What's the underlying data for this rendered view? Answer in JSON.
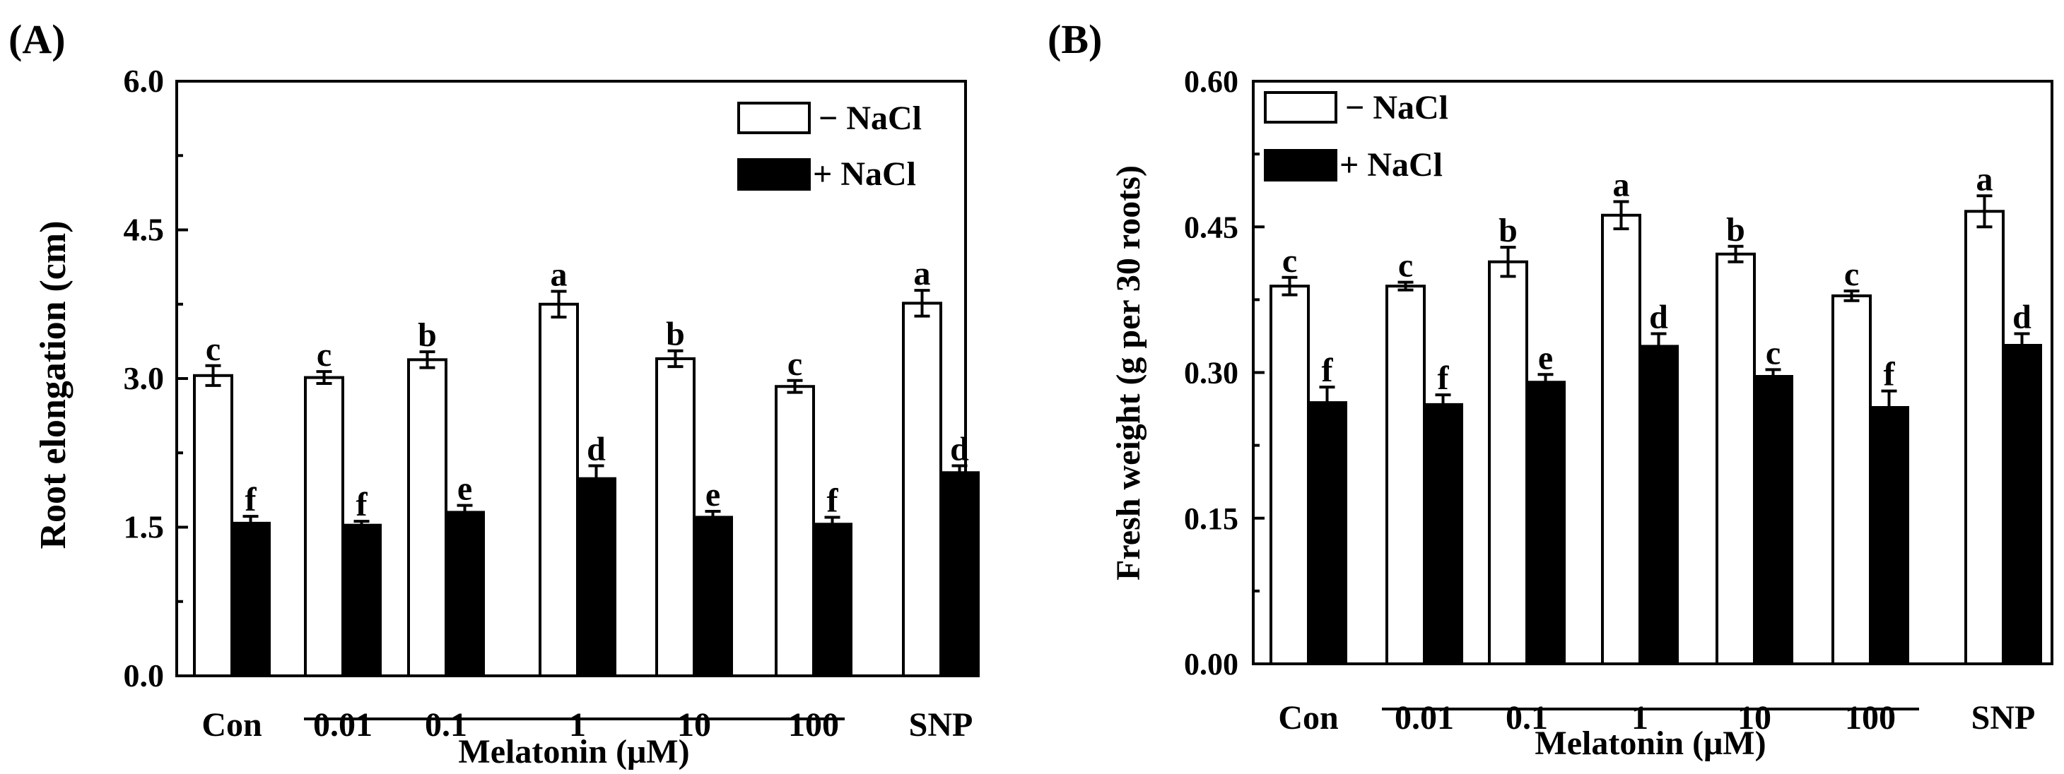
{
  "chart_data": [
    {
      "panel_label": "(A)",
      "type": "bar",
      "ylabel": "Root elongation (cm)",
      "ylim": [
        0,
        6.0
      ],
      "yticks": [
        "0.0",
        "1.5",
        "3.0",
        "4.5",
        "6.0"
      ],
      "ytick_values": [
        0,
        1.5,
        3.0,
        4.5,
        6.0
      ],
      "categories": [
        "Con",
        "0.01",
        "0.1",
        "1",
        "10",
        "100",
        "SNP"
      ],
      "group_label": "Melatonin (μM)",
      "legend": [
        "− NaCl",
        "+ NaCl"
      ],
      "legend_position": "top-right",
      "series": [
        {
          "name": "− NaCl",
          "values": [
            3.03,
            3.01,
            3.19,
            3.75,
            3.2,
            2.92,
            3.76
          ],
          "errors": [
            0.1,
            0.06,
            0.08,
            0.13,
            0.08,
            0.06,
            0.13
          ],
          "letters": [
            "c",
            "c",
            "b",
            "a",
            "b",
            "c",
            "a"
          ]
        },
        {
          "name": "+ NaCl",
          "values": [
            1.54,
            1.52,
            1.65,
            1.99,
            1.6,
            1.53,
            2.05
          ],
          "errors": [
            0.07,
            0.04,
            0.07,
            0.13,
            0.06,
            0.07,
            0.07
          ],
          "letters": [
            "f",
            "f",
            "e",
            "d",
            "e",
            "f",
            "d"
          ]
        }
      ]
    },
    {
      "panel_label": "(B)",
      "type": "bar",
      "ylabel": "Fresh weight (g per 30 roots)",
      "ylim": [
        0,
        0.6
      ],
      "yticks": [
        "0.00",
        "0.15",
        "0.30",
        "0.45",
        "0.60"
      ],
      "ytick_values": [
        0,
        0.15,
        0.3,
        0.45,
        0.6
      ],
      "categories": [
        "Con",
        "0.01",
        "0.1",
        "1",
        "10",
        "100",
        "SNP"
      ],
      "group_label": "Melatonin (μM)",
      "legend": [
        "− NaCl",
        "+ NaCl"
      ],
      "legend_position": "top-left",
      "series": [
        {
          "name": "− NaCl",
          "values": [
            0.389,
            0.389,
            0.414,
            0.462,
            0.422,
            0.379,
            0.466
          ],
          "errors": [
            0.009,
            0.004,
            0.015,
            0.014,
            0.008,
            0.005,
            0.016
          ],
          "letters": [
            "c",
            "c",
            "b",
            "a",
            "b",
            "c",
            "a"
          ]
        },
        {
          "name": "+ NaCl",
          "values": [
            0.269,
            0.267,
            0.29,
            0.327,
            0.296,
            0.264,
            0.328
          ],
          "errors": [
            0.016,
            0.01,
            0.008,
            0.013,
            0.007,
            0.017,
            0.012
          ],
          "letters": [
            "f",
            "f",
            "e",
            "d",
            "c",
            "f",
            "d"
          ]
        }
      ]
    }
  ]
}
